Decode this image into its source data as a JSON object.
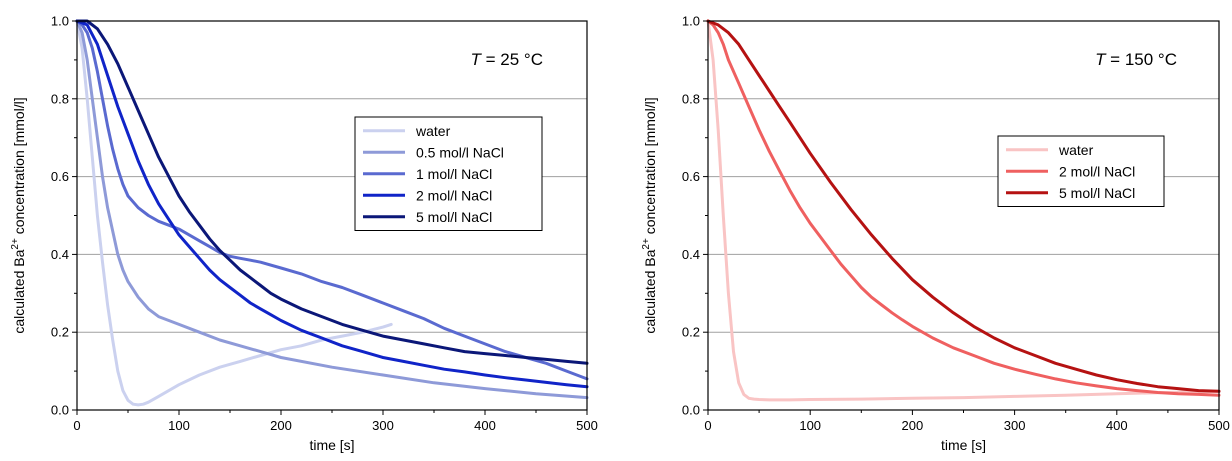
{
  "chart_data": [
    {
      "type": "line",
      "annotation_var": "T",
      "annotation_rest": " = 25 °C",
      "xlabel": "time [s]",
      "ylabel_prefix": "calculated Ba",
      "ylabel_sup": "2+",
      "ylabel_suffix": " concentration [mmol/l]",
      "xlim": [
        0,
        500
      ],
      "ylim": [
        0,
        1.0
      ],
      "xticks": [
        0,
        100,
        200,
        300,
        400,
        500
      ],
      "yticks": [
        0.0,
        0.2,
        0.4,
        0.6,
        0.8,
        1.0
      ],
      "xtick_labels": [
        "0",
        "100",
        "200",
        "300",
        "400",
        "500"
      ],
      "ytick_labels": [
        "0.0",
        "0.2",
        "0.4",
        "0.6",
        "0.8",
        "1.0"
      ],
      "horizontal_grid": true,
      "legend_position": "right",
      "series": [
        {
          "name": "water",
          "color": "#cbd1ef",
          "x": [
            0,
            5,
            10,
            15,
            20,
            25,
            30,
            35,
            40,
            45,
            50,
            55,
            60,
            65,
            70,
            80,
            90,
            100,
            120,
            140,
            160,
            180,
            200,
            220,
            240,
            260,
            280,
            300,
            308
          ],
          "y": [
            1.0,
            0.93,
            0.8,
            0.65,
            0.5,
            0.38,
            0.27,
            0.18,
            0.1,
            0.05,
            0.025,
            0.015,
            0.013,
            0.015,
            0.02,
            0.035,
            0.05,
            0.065,
            0.09,
            0.11,
            0.125,
            0.14,
            0.155,
            0.165,
            0.18,
            0.19,
            0.2,
            0.213,
            0.22
          ]
        },
        {
          "name": "0.5 mol/l NaCl",
          "color": "#8e9ad8",
          "x": [
            0,
            5,
            10,
            15,
            20,
            25,
            30,
            35,
            40,
            45,
            50,
            60,
            70,
            80,
            90,
            100,
            120,
            140,
            160,
            180,
            200,
            250,
            300,
            350,
            400,
            450,
            500
          ],
          "y": [
            1.0,
            0.97,
            0.9,
            0.8,
            0.7,
            0.6,
            0.52,
            0.46,
            0.4,
            0.36,
            0.33,
            0.29,
            0.26,
            0.24,
            0.23,
            0.22,
            0.2,
            0.18,
            0.165,
            0.15,
            0.135,
            0.11,
            0.09,
            0.07,
            0.055,
            0.042,
            0.032
          ]
        },
        {
          "name": "1 mol/l NaCl",
          "color": "#5a6ad0",
          "x": [
            0,
            5,
            10,
            15,
            20,
            25,
            30,
            35,
            40,
            45,
            50,
            60,
            70,
            80,
            90,
            100,
            110,
            120,
            130,
            140,
            150,
            160,
            170,
            180,
            200,
            220,
            240,
            260,
            280,
            300,
            320,
            340,
            360,
            380,
            400,
            420,
            440,
            460,
            480,
            500
          ],
          "y": [
            1.0,
            0.99,
            0.97,
            0.93,
            0.87,
            0.8,
            0.73,
            0.67,
            0.62,
            0.58,
            0.55,
            0.52,
            0.5,
            0.485,
            0.475,
            0.465,
            0.45,
            0.435,
            0.42,
            0.405,
            0.395,
            0.39,
            0.385,
            0.38,
            0.365,
            0.35,
            0.33,
            0.315,
            0.295,
            0.275,
            0.255,
            0.235,
            0.21,
            0.19,
            0.17,
            0.15,
            0.135,
            0.12,
            0.1,
            0.08
          ]
        },
        {
          "name": "2 mol/l NaCl",
          "color": "#1024c8",
          "x": [
            0,
            10,
            20,
            30,
            40,
            50,
            60,
            70,
            80,
            90,
            100,
            110,
            120,
            130,
            140,
            150,
            160,
            170,
            180,
            190,
            200,
            220,
            240,
            260,
            280,
            300,
            320,
            340,
            360,
            380,
            400,
            420,
            440,
            460,
            480,
            500
          ],
          "y": [
            1.0,
            0.99,
            0.94,
            0.86,
            0.78,
            0.71,
            0.64,
            0.58,
            0.53,
            0.49,
            0.45,
            0.42,
            0.39,
            0.36,
            0.335,
            0.315,
            0.295,
            0.275,
            0.26,
            0.245,
            0.23,
            0.205,
            0.185,
            0.165,
            0.15,
            0.135,
            0.125,
            0.115,
            0.105,
            0.098,
            0.09,
            0.083,
            0.077,
            0.071,
            0.065,
            0.06
          ]
        },
        {
          "name": "5 mol/l NaCl",
          "color": "#0b1778",
          "x": [
            0,
            10,
            20,
            30,
            40,
            50,
            60,
            70,
            80,
            90,
            100,
            110,
            120,
            130,
            140,
            150,
            160,
            170,
            180,
            190,
            200,
            220,
            240,
            260,
            280,
            300,
            320,
            340,
            360,
            380,
            400,
            420,
            440,
            460,
            480,
            500
          ],
          "y": [
            1.0,
            1.0,
            0.98,
            0.94,
            0.89,
            0.83,
            0.77,
            0.71,
            0.65,
            0.6,
            0.55,
            0.51,
            0.475,
            0.44,
            0.41,
            0.385,
            0.36,
            0.34,
            0.32,
            0.3,
            0.285,
            0.26,
            0.24,
            0.22,
            0.205,
            0.19,
            0.18,
            0.17,
            0.16,
            0.15,
            0.145,
            0.14,
            0.135,
            0.13,
            0.125,
            0.12
          ]
        }
      ]
    },
    {
      "type": "line",
      "annotation_var": "T",
      "annotation_rest": " = 150 °C",
      "xlabel": "time [s]",
      "ylabel_prefix": "calculated Ba",
      "ylabel_sup": "2+",
      "ylabel_suffix": " concentration [mmol/l]",
      "xlim": [
        0,
        500
      ],
      "ylim": [
        0,
        1.0
      ],
      "xticks": [
        0,
        100,
        200,
        300,
        400,
        500
      ],
      "yticks": [
        0.0,
        0.2,
        0.4,
        0.6,
        0.8,
        1.0
      ],
      "xtick_labels": [
        "0",
        "100",
        "200",
        "300",
        "400",
        "500"
      ],
      "ytick_labels": [
        "0.0",
        "0.2",
        "0.4",
        "0.6",
        "0.8",
        "1.0"
      ],
      "horizontal_grid": true,
      "legend_position": "right",
      "series": [
        {
          "name": "water",
          "color": "#f9c4c4",
          "x": [
            0,
            5,
            10,
            15,
            20,
            25,
            30,
            35,
            40,
            45,
            50,
            60,
            80,
            100,
            150,
            200,
            250,
            300,
            350,
            400,
            450,
            500
          ],
          "y": [
            1.0,
            0.9,
            0.72,
            0.5,
            0.3,
            0.15,
            0.07,
            0.04,
            0.03,
            0.028,
            0.027,
            0.026,
            0.026,
            0.027,
            0.028,
            0.03,
            0.032,
            0.035,
            0.038,
            0.042,
            0.045,
            0.048
          ]
        },
        {
          "name": "2 mol/l NaCl",
          "color": "#ef6060",
          "x": [
            0,
            5,
            10,
            15,
            20,
            30,
            40,
            50,
            60,
            70,
            80,
            90,
            100,
            110,
            120,
            130,
            140,
            150,
            160,
            170,
            180,
            190,
            200,
            220,
            240,
            260,
            280,
            300,
            320,
            340,
            360,
            380,
            400,
            420,
            440,
            460,
            480,
            500
          ],
          "y": [
            1.0,
            0.99,
            0.97,
            0.94,
            0.9,
            0.84,
            0.78,
            0.72,
            0.665,
            0.615,
            0.565,
            0.52,
            0.48,
            0.445,
            0.41,
            0.375,
            0.345,
            0.315,
            0.29,
            0.27,
            0.25,
            0.232,
            0.215,
            0.185,
            0.16,
            0.14,
            0.12,
            0.105,
            0.092,
            0.08,
            0.07,
            0.062,
            0.055,
            0.05,
            0.045,
            0.042,
            0.04,
            0.038
          ]
        },
        {
          "name": "5 mol/l NaCl",
          "color": "#b51212",
          "x": [
            0,
            10,
            20,
            30,
            40,
            50,
            60,
            70,
            80,
            90,
            100,
            120,
            140,
            160,
            180,
            200,
            220,
            240,
            260,
            280,
            300,
            320,
            340,
            360,
            380,
            400,
            420,
            440,
            460,
            480,
            500
          ],
          "y": [
            1.0,
            0.99,
            0.97,
            0.94,
            0.9,
            0.86,
            0.82,
            0.78,
            0.74,
            0.7,
            0.66,
            0.585,
            0.515,
            0.45,
            0.39,
            0.335,
            0.29,
            0.25,
            0.215,
            0.185,
            0.16,
            0.14,
            0.12,
            0.105,
            0.09,
            0.078,
            0.068,
            0.06,
            0.055,
            0.05,
            0.048
          ]
        }
      ]
    }
  ]
}
